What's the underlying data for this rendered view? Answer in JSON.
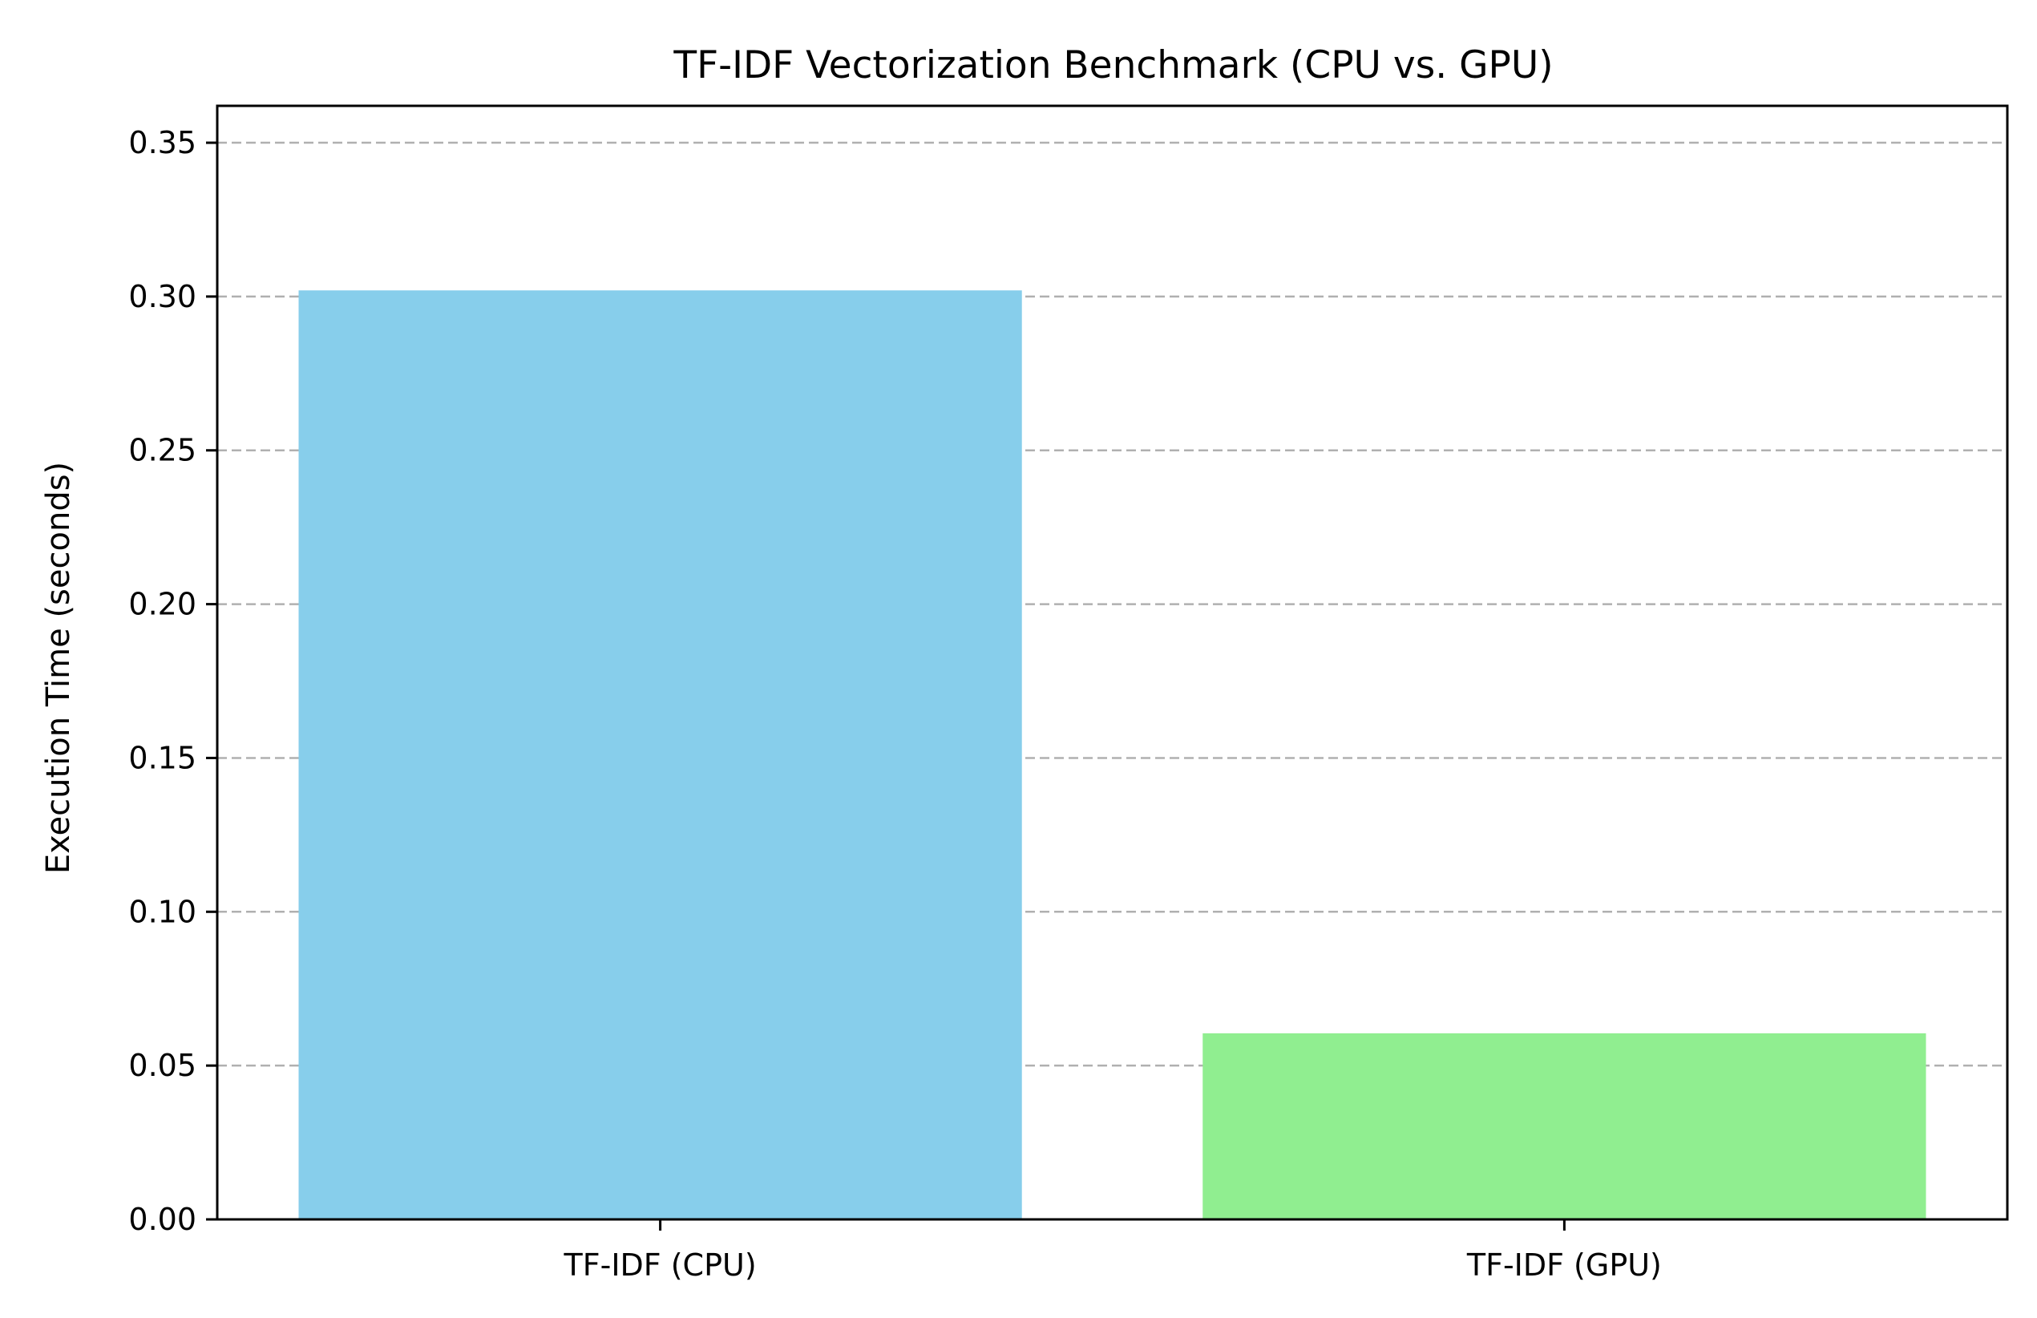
{
  "chart_data": {
    "type": "bar",
    "title": "TF-IDF Vectorization Benchmark (CPU vs. GPU)",
    "xlabel": "",
    "ylabel": "Execution Time (seconds)",
    "categories": [
      "TF-IDF (CPU)",
      "TF-IDF (GPU)"
    ],
    "values": [
      0.302,
      0.0605
    ],
    "colors": [
      "#87ceeb",
      "#90ee90"
    ],
    "ylim": [
      0,
      0.362
    ],
    "yticks": [
      0.0,
      0.05,
      0.1,
      0.15,
      0.2,
      0.25,
      0.3,
      0.35
    ],
    "ytick_labels": [
      "0.00",
      "0.05",
      "0.10",
      "0.15",
      "0.20",
      "0.25",
      "0.30",
      "0.35"
    ],
    "grid": "y-dashed",
    "legend": "none"
  }
}
